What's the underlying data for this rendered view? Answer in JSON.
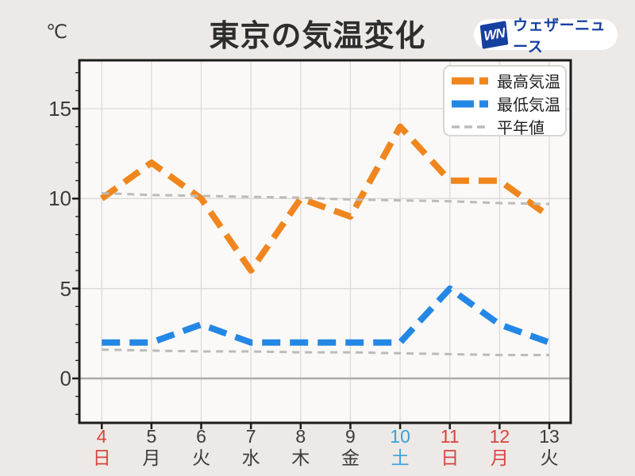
{
  "header": {
    "unit_label": "℃",
    "title": "東京の気温変化",
    "logo": {
      "monogram": "WN",
      "brand": "ウェザーニュース"
    }
  },
  "legend": {
    "items": [
      {
        "key": "max-temp",
        "label": "最高気温",
        "color": "#F0861E",
        "style": "thick"
      },
      {
        "key": "min-temp",
        "label": "最低気温",
        "color": "#2387E6",
        "style": "thick"
      },
      {
        "key": "normal",
        "label": "平年値",
        "color": "#BDBBB8",
        "style": "thin"
      }
    ]
  },
  "chart_data": {
    "type": "line",
    "title": "東京の気温変化",
    "ylabel": "℃",
    "x": [
      4,
      5,
      6,
      7,
      8,
      9,
      10,
      11,
      12,
      13
    ],
    "x_labels": [
      {
        "day": "4",
        "weekday": "日",
        "day_type": "holiday"
      },
      {
        "day": "5",
        "weekday": "月",
        "day_type": "weekday"
      },
      {
        "day": "6",
        "weekday": "火",
        "day_type": "weekday"
      },
      {
        "day": "7",
        "weekday": "水",
        "day_type": "weekday"
      },
      {
        "day": "8",
        "weekday": "木",
        "day_type": "weekday"
      },
      {
        "day": "9",
        "weekday": "金",
        "day_type": "weekday"
      },
      {
        "day": "10",
        "weekday": "土",
        "day_type": "saturday"
      },
      {
        "day": "11",
        "weekday": "日",
        "day_type": "holiday"
      },
      {
        "day": "12",
        "weekday": "月",
        "day_type": "holiday"
      },
      {
        "day": "13",
        "weekday": "火",
        "day_type": "weekday"
      }
    ],
    "series": [
      {
        "key": "max-temp",
        "name": "最高気温",
        "values": [
          10,
          12,
          10,
          6,
          10,
          9,
          14,
          11,
          11,
          9
        ],
        "color": "#F0861E",
        "width": 8,
        "dash": "23 12"
      },
      {
        "key": "min-temp",
        "name": "最低気温",
        "values": [
          2,
          2,
          3,
          2,
          2,
          2,
          2,
          5,
          3,
          2
        ],
        "color": "#2387E6",
        "width": 8,
        "dash": "23 12"
      },
      {
        "key": "normal-max",
        "name": "平年値(最高気温)",
        "values": [
          10.3,
          10.2,
          10.15,
          10.1,
          10.05,
          9.95,
          9.9,
          9.85,
          9.75,
          9.7
        ],
        "color": "#BDBBB8",
        "width": 3,
        "dash": "9 7"
      },
      {
        "key": "normal-min",
        "name": "平年値(最低気温)",
        "values": [
          1.6,
          1.55,
          1.5,
          1.5,
          1.45,
          1.45,
          1.4,
          1.35,
          1.3,
          1.3
        ],
        "color": "#BDBBB8",
        "width": 3,
        "dash": "9 7"
      }
    ],
    "y_ticks": [
      "0",
      "5",
      "10",
      "15"
    ],
    "y_tick_values": [
      0,
      5,
      10,
      15
    ],
    "minor_y_step": 1,
    "ylim": [
      -2.47,
      17.69
    ],
    "xlim": [
      3.55,
      13.43
    ],
    "grid": true,
    "zero_line": true,
    "legend_position": "upper right"
  },
  "colors": {
    "page_bg": "#ECE9E6",
    "plot_bg": "#FBF9F7",
    "grid": "#DCDAD7",
    "zero_line": "#ADAAA7",
    "frame": "#1C1C1C",
    "text": "#3B3B3B",
    "title": "#2D2D2D",
    "holiday": "#D84340",
    "saturday": "#38A1DC",
    "logo_blue": "#1640A0",
    "legend_border": "#D8D6D3"
  }
}
